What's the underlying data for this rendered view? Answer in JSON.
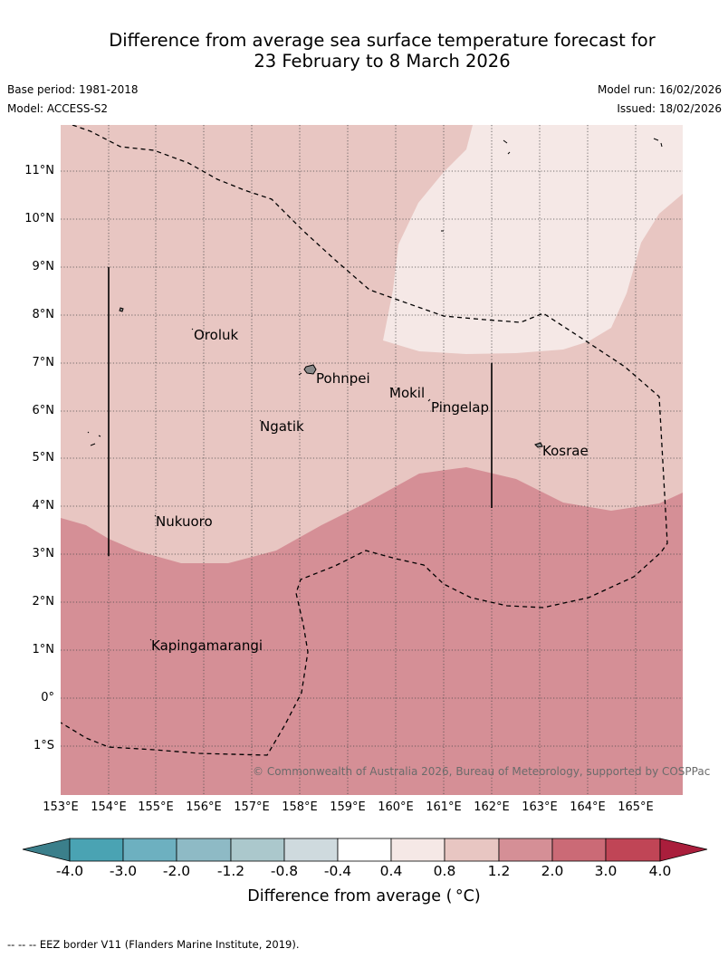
{
  "title": {
    "line1": "Difference from average sea surface temperature forecast for",
    "line2": "23 February to 8 March 2026"
  },
  "meta": {
    "base_period": "Base period: 1981-2018",
    "model": "Model: ACCESS-S2",
    "model_run": "Model run: 16/02/2026",
    "issued": "Issued: 18/02/2026"
  },
  "map": {
    "latitude_labels": [
      "11°N",
      "10°N",
      "9°N",
      "8°N",
      "7°N",
      "6°N",
      "5°N",
      "4°N",
      "3°N",
      "2°N",
      "1°N",
      "0°",
      "1°S"
    ],
    "longitude_labels": [
      "153°E",
      "154°E",
      "155°E",
      "156°E",
      "157°E",
      "158°E",
      "159°E",
      "160°E",
      "161°E",
      "162°E",
      "163°E",
      "164°E",
      "165°E"
    ],
    "places": [
      "Oroluk",
      "Pohnpei",
      "Mokil",
      "Pingelap",
      "Ngatik",
      "Kosrae",
      "Nukuoro",
      "Kapingamarangi"
    ],
    "copyright": "© Commonwealth of Australia 2026, Bureau of Meteorology, supported by COSPPac",
    "colors": {
      "band_0_4_0_8": "#f5e8e6",
      "band_0_8_1_2": "#e8c6c2",
      "band_1_2_2_0": "#d58f96"
    }
  },
  "colorbar": {
    "labels": [
      "-4.0",
      "-3.0",
      "-2.0",
      "-1.2",
      "-0.8",
      "-0.4",
      "0.4",
      "0.8",
      "1.2",
      "2.0",
      "3.0",
      "4.0"
    ],
    "colors": [
      "#3b7f8b",
      "#4aa3b3",
      "#6db0c0",
      "#8ebac5",
      "#abc8cc",
      "#cfdade",
      "#ffffff",
      "#f5e8e6",
      "#e8c6c2",
      "#d58f96",
      "#cb6a76",
      "#c04556",
      "#aa1e3c"
    ],
    "title": "Difference from average ( °C)"
  },
  "footnote": "--  --  -- EEZ border V11 (Flanders Marine Institute, 2019)."
}
